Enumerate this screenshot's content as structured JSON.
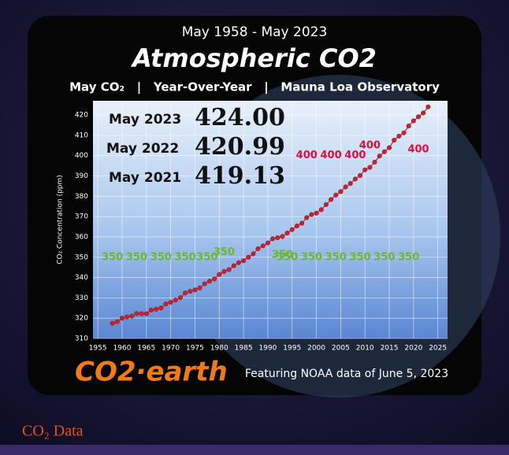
{
  "chart_data": {
    "type": "line",
    "supertitle": "May 1958 - May 2023",
    "title": "Atmospheric CO2",
    "subtitle": "May CO₂   |   Year-Over-Year   |   Mauna Loa Observatory",
    "ylabel": "CO₂ Concentration (ppm)",
    "logo": "CO2·earth",
    "footer": "Featuring NOAA data of June 5, 2023",
    "caption": "CO₂ Data",
    "callouts": [
      {
        "label": "May 2023",
        "text": "424.00"
      },
      {
        "label": "May 2022",
        "text": "420.99"
      },
      {
        "label": "May 2021",
        "text": "419.13"
      }
    ],
    "annotations": [
      {
        "text": "350",
        "x": 1958,
        "y": 350,
        "color": "#6bb82a"
      },
      {
        "text": "350",
        "x": 1963,
        "y": 350,
        "color": "#6bb82a"
      },
      {
        "text": "350",
        "x": 1968,
        "y": 350,
        "color": "#6bb82a"
      },
      {
        "text": "350",
        "x": 1973,
        "y": 350,
        "color": "#6bb82a"
      },
      {
        "text": "350",
        "x": 1977.5,
        "y": 350,
        "color": "#6bb82a"
      },
      {
        "text": "350",
        "x": 1981,
        "y": 352.5,
        "color": "#6bb82a"
      },
      {
        "text": "350",
        "x": 1993,
        "y": 351,
        "color": "#6bb82a"
      },
      {
        "text": "350",
        "x": 1994,
        "y": 350,
        "color": "#6bb82a"
      },
      {
        "text": "350",
        "x": 1999,
        "y": 350,
        "color": "#6bb82a"
      },
      {
        "text": "350",
        "x": 2004,
        "y": 350,
        "color": "#6bb82a"
      },
      {
        "text": "350",
        "x": 2009,
        "y": 350,
        "color": "#6bb82a"
      },
      {
        "text": "350",
        "x": 2014,
        "y": 350,
        "color": "#6bb82a"
      },
      {
        "text": "350",
        "x": 2019,
        "y": 350,
        "color": "#6bb82a"
      },
      {
        "text": "400",
        "x": 1998,
        "y": 400,
        "color": "#d8103c"
      },
      {
        "text": "400",
        "x": 2003,
        "y": 400,
        "color": "#d8103c"
      },
      {
        "text": "400",
        "x": 2008,
        "y": 400,
        "color": "#d8103c"
      },
      {
        "text": "400",
        "x": 2011,
        "y": 405,
        "color": "#d8103c"
      },
      {
        "text": "400",
        "x": 2021,
        "y": 403,
        "color": "#d8103c"
      }
    ],
    "x": [
      1958,
      1959,
      1960,
      1961,
      1962,
      1963,
      1964,
      1965,
      1966,
      1967,
      1968,
      1969,
      1970,
      1971,
      1972,
      1973,
      1974,
      1975,
      1976,
      1977,
      1978,
      1979,
      1980,
      1981,
      1982,
      1983,
      1984,
      1985,
      1986,
      1987,
      1988,
      1989,
      1990,
      1991,
      1992,
      1993,
      1994,
      1995,
      1996,
      1997,
      1998,
      1999,
      2000,
      2001,
      2002,
      2003,
      2004,
      2005,
      2006,
      2007,
      2008,
      2009,
      2010,
      2011,
      2012,
      2013,
      2014,
      2015,
      2016,
      2017,
      2018,
      2019,
      2020,
      2021,
      2022,
      2023
    ],
    "series": [
      {
        "name": "May CO₂",
        "color": "#c8202e",
        "values": [
          317.5,
          318.3,
          320.0,
          320.6,
          321.0,
          322.3,
          322.2,
          322.2,
          324.0,
          324.4,
          325.0,
          327.0,
          327.8,
          328.9,
          330.1,
          332.4,
          333.2,
          333.9,
          334.9,
          336.9,
          338.2,
          339.3,
          341.5,
          343.0,
          343.9,
          345.8,
          347.3,
          348.3,
          350.0,
          351.7,
          354.2,
          355.6,
          357.0,
          359.1,
          359.6,
          360.2,
          361.9,
          363.6,
          365.4,
          366.7,
          369.5,
          371.0,
          371.7,
          373.4,
          375.9,
          378.4,
          380.6,
          382.3,
          384.6,
          386.3,
          388.5,
          390.2,
          393.0,
          394.2,
          396.8,
          399.8,
          401.9,
          403.9,
          407.6,
          409.6,
          411.2,
          414.6,
          417.1,
          419.13,
          420.99,
          424.0
        ]
      }
    ],
    "xlim": [
      1954,
      2027
    ],
    "xticks": [
      1955,
      1960,
      1965,
      1970,
      1975,
      1980,
      1985,
      1990,
      1995,
      2000,
      2005,
      2010,
      2015,
      2020,
      2025
    ],
    "ylim": [
      310,
      427
    ],
    "yticks": [
      310,
      320,
      330,
      340,
      350,
      360,
      370,
      380,
      390,
      400,
      410,
      420
    ],
    "grid": true
  }
}
